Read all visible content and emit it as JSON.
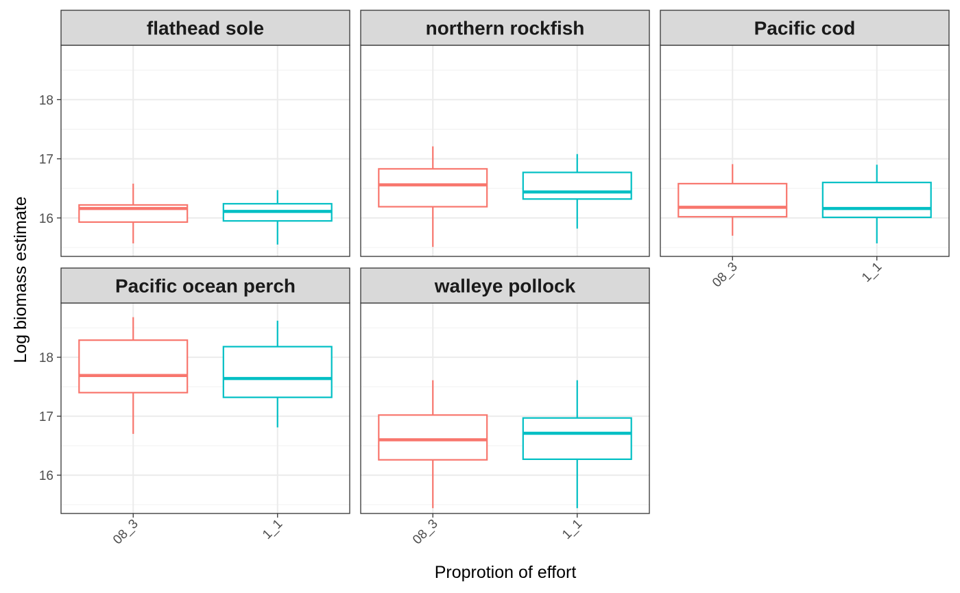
{
  "chart_data": {
    "type": "boxplot",
    "facet_layout": "wrap",
    "xlabel": "Proprotion of effort",
    "ylabel": "Log biomass estimate",
    "categories": [
      "08_3",
      "1_1"
    ],
    "yticks": [
      16,
      17,
      18
    ],
    "series_colors": [
      "#F8766D",
      "#00BFC4"
    ],
    "ylim": [
      15.35,
      18.92
    ],
    "panels": [
      {
        "title": "flathead sole",
        "boxes": [
          {
            "category": "08_3",
            "min": 15.57,
            "q1": 15.93,
            "median": 16.16,
            "q3": 16.22,
            "max": 16.58
          },
          {
            "category": "1_1",
            "min": 15.55,
            "q1": 15.95,
            "median": 16.11,
            "q3": 16.24,
            "max": 16.47
          }
        ]
      },
      {
        "title": "northern rockfish",
        "boxes": [
          {
            "category": "08_3",
            "min": 15.51,
            "q1": 16.19,
            "median": 16.56,
            "q3": 16.83,
            "max": 17.21
          },
          {
            "category": "1_1",
            "min": 15.82,
            "q1": 16.32,
            "median": 16.44,
            "q3": 16.77,
            "max": 17.08
          }
        ]
      },
      {
        "title": "Pacific cod",
        "boxes": [
          {
            "category": "08_3",
            "min": 15.7,
            "q1": 16.02,
            "median": 16.18,
            "q3": 16.58,
            "max": 16.91
          },
          {
            "category": "1_1",
            "min": 15.57,
            "q1": 16.01,
            "median": 16.16,
            "q3": 16.6,
            "max": 16.9
          }
        ]
      },
      {
        "title": "Pacific ocean perch",
        "boxes": [
          {
            "category": "08_3",
            "min": 16.7,
            "q1": 17.4,
            "median": 17.69,
            "q3": 18.29,
            "max": 18.68
          },
          {
            "category": "1_1",
            "min": 16.81,
            "q1": 17.32,
            "median": 17.64,
            "q3": 18.18,
            "max": 18.62
          }
        ]
      },
      {
        "title": "walleye pollock",
        "boxes": [
          {
            "category": "08_3",
            "min": 15.44,
            "q1": 16.26,
            "median": 16.6,
            "q3": 17.02,
            "max": 17.61
          },
          {
            "category": "1_1",
            "min": 15.44,
            "q1": 16.27,
            "median": 16.71,
            "q3": 16.97,
            "max": 17.61
          }
        ]
      }
    ]
  }
}
